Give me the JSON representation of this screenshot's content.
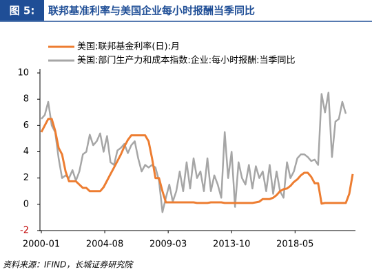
{
  "chart_data": {
    "type": "line",
    "figure_label": "图 5:",
    "title": "联邦基准利率与美国企业每小时报酬当季同比",
    "source": "资料来源：IFIND，长城证券研究院",
    "x": [
      "2000-01",
      "2000-04",
      "2000-07",
      "2000-10",
      "2001-01",
      "2001-04",
      "2001-07",
      "2001-10",
      "2002-01",
      "2002-04",
      "2002-07",
      "2002-10",
      "2003-01",
      "2003-04",
      "2003-07",
      "2003-10",
      "2004-01",
      "2004-04",
      "2004-07",
      "2004-10",
      "2005-01",
      "2005-04",
      "2005-07",
      "2005-10",
      "2006-01",
      "2006-04",
      "2006-07",
      "2006-10",
      "2007-01",
      "2007-04",
      "2007-07",
      "2007-10",
      "2008-01",
      "2008-04",
      "2008-07",
      "2008-10",
      "2009-01",
      "2009-04",
      "2009-07",
      "2009-10",
      "2010-01",
      "2010-04",
      "2010-07",
      "2010-10",
      "2011-01",
      "2011-04",
      "2011-07",
      "2011-10",
      "2012-01",
      "2012-04",
      "2012-07",
      "2012-10",
      "2013-01",
      "2013-04",
      "2013-07",
      "2013-10",
      "2014-01",
      "2014-04",
      "2014-07",
      "2014-10",
      "2015-01",
      "2015-04",
      "2015-07",
      "2015-10",
      "2016-01",
      "2016-04",
      "2016-07",
      "2016-10",
      "2017-01",
      "2017-04",
      "2017-07",
      "2017-10",
      "2018-01",
      "2018-04",
      "2018-07",
      "2018-10",
      "2019-01",
      "2019-04",
      "2019-07",
      "2019-10",
      "2020-01",
      "2020-04",
      "2020-07",
      "2020-10",
      "2021-01",
      "2021-04",
      "2021-07",
      "2021-10",
      "2022-01",
      "2022-04",
      "2022-07"
    ],
    "series": [
      {
        "name": "美国:联邦基金利率(日):月",
        "color": "#ed7d31",
        "values": [
          5.5,
          6.0,
          6.5,
          6.5,
          5.6,
          4.3,
          3.8,
          2.5,
          1.75,
          1.75,
          1.75,
          1.5,
          1.25,
          1.25,
          1.0,
          1.0,
          1.0,
          1.0,
          1.3,
          1.8,
          2.3,
          2.8,
          3.3,
          3.8,
          4.4,
          4.9,
          5.25,
          5.25,
          5.25,
          5.25,
          5.25,
          4.8,
          3.5,
          2.0,
          2.0,
          1.0,
          0.15,
          0.15,
          0.15,
          0.15,
          0.15,
          0.15,
          0.15,
          0.15,
          0.15,
          0.1,
          0.1,
          0.1,
          0.1,
          0.15,
          0.15,
          0.15,
          0.15,
          0.1,
          0.1,
          0.1,
          0.1,
          0.1,
          0.1,
          0.1,
          0.1,
          0.1,
          0.15,
          0.2,
          0.4,
          0.4,
          0.4,
          0.5,
          0.7,
          1.0,
          1.15,
          1.2,
          1.4,
          1.7,
          1.9,
          2.2,
          2.4,
          2.4,
          2.1,
          1.6,
          1.6,
          0.05,
          0.1,
          0.1,
          0.1,
          0.1,
          0.1,
          0.1,
          0.1,
          0.8,
          2.3
        ]
      },
      {
        "name": "美国:部门生产力和成本指数:企业:每小时报酬:当季同比",
        "color": "#a6a6a6",
        "values": [
          6.5,
          6.8,
          7.8,
          6.0,
          5.5,
          3.5,
          2.0,
          2.2,
          2.0,
          2.6,
          1.8,
          2.5,
          3.8,
          4.0,
          5.3,
          4.5,
          4.8,
          5.4,
          4.0,
          5.2,
          3.2,
          3.0,
          4.1,
          4.3,
          4.6,
          3.9,
          4.5,
          4.8,
          3.5,
          2.5,
          3.0,
          2.8,
          3.0,
          2.8,
          1.8,
          -0.6,
          0.5,
          1.5,
          0.2,
          1.0,
          2.5,
          1.0,
          3.2,
          1.2,
          3.5,
          2.0,
          2.5,
          1.0,
          3.5,
          1.0,
          2.2,
          1.5,
          0.5,
          5.5,
          2.0,
          4.0,
          -0.2,
          3.2,
          2.0,
          1.5,
          3.0,
          1.2,
          2.9,
          2.0,
          2.5,
          1.0,
          3.0,
          0.8,
          2.5,
          1.0,
          0.5,
          3.2,
          2.0,
          2.5,
          3.5,
          3.8,
          3.8,
          3.6,
          3.3,
          3.4,
          3.0,
          8.4,
          7.0,
          8.5,
          3.6,
          6.3,
          6.5,
          7.8,
          6.9,
          null,
          null
        ]
      }
    ],
    "xlim": [
      "2000-01",
      "2022-07"
    ],
    "xticks": [
      "2000-01",
      "2004-08",
      "2009-03",
      "2013-10",
      "2018-05"
    ],
    "ylim": [
      -2,
      10
    ],
    "yticks": [
      -2,
      0,
      2,
      4,
      6,
      8,
      10
    ]
  }
}
